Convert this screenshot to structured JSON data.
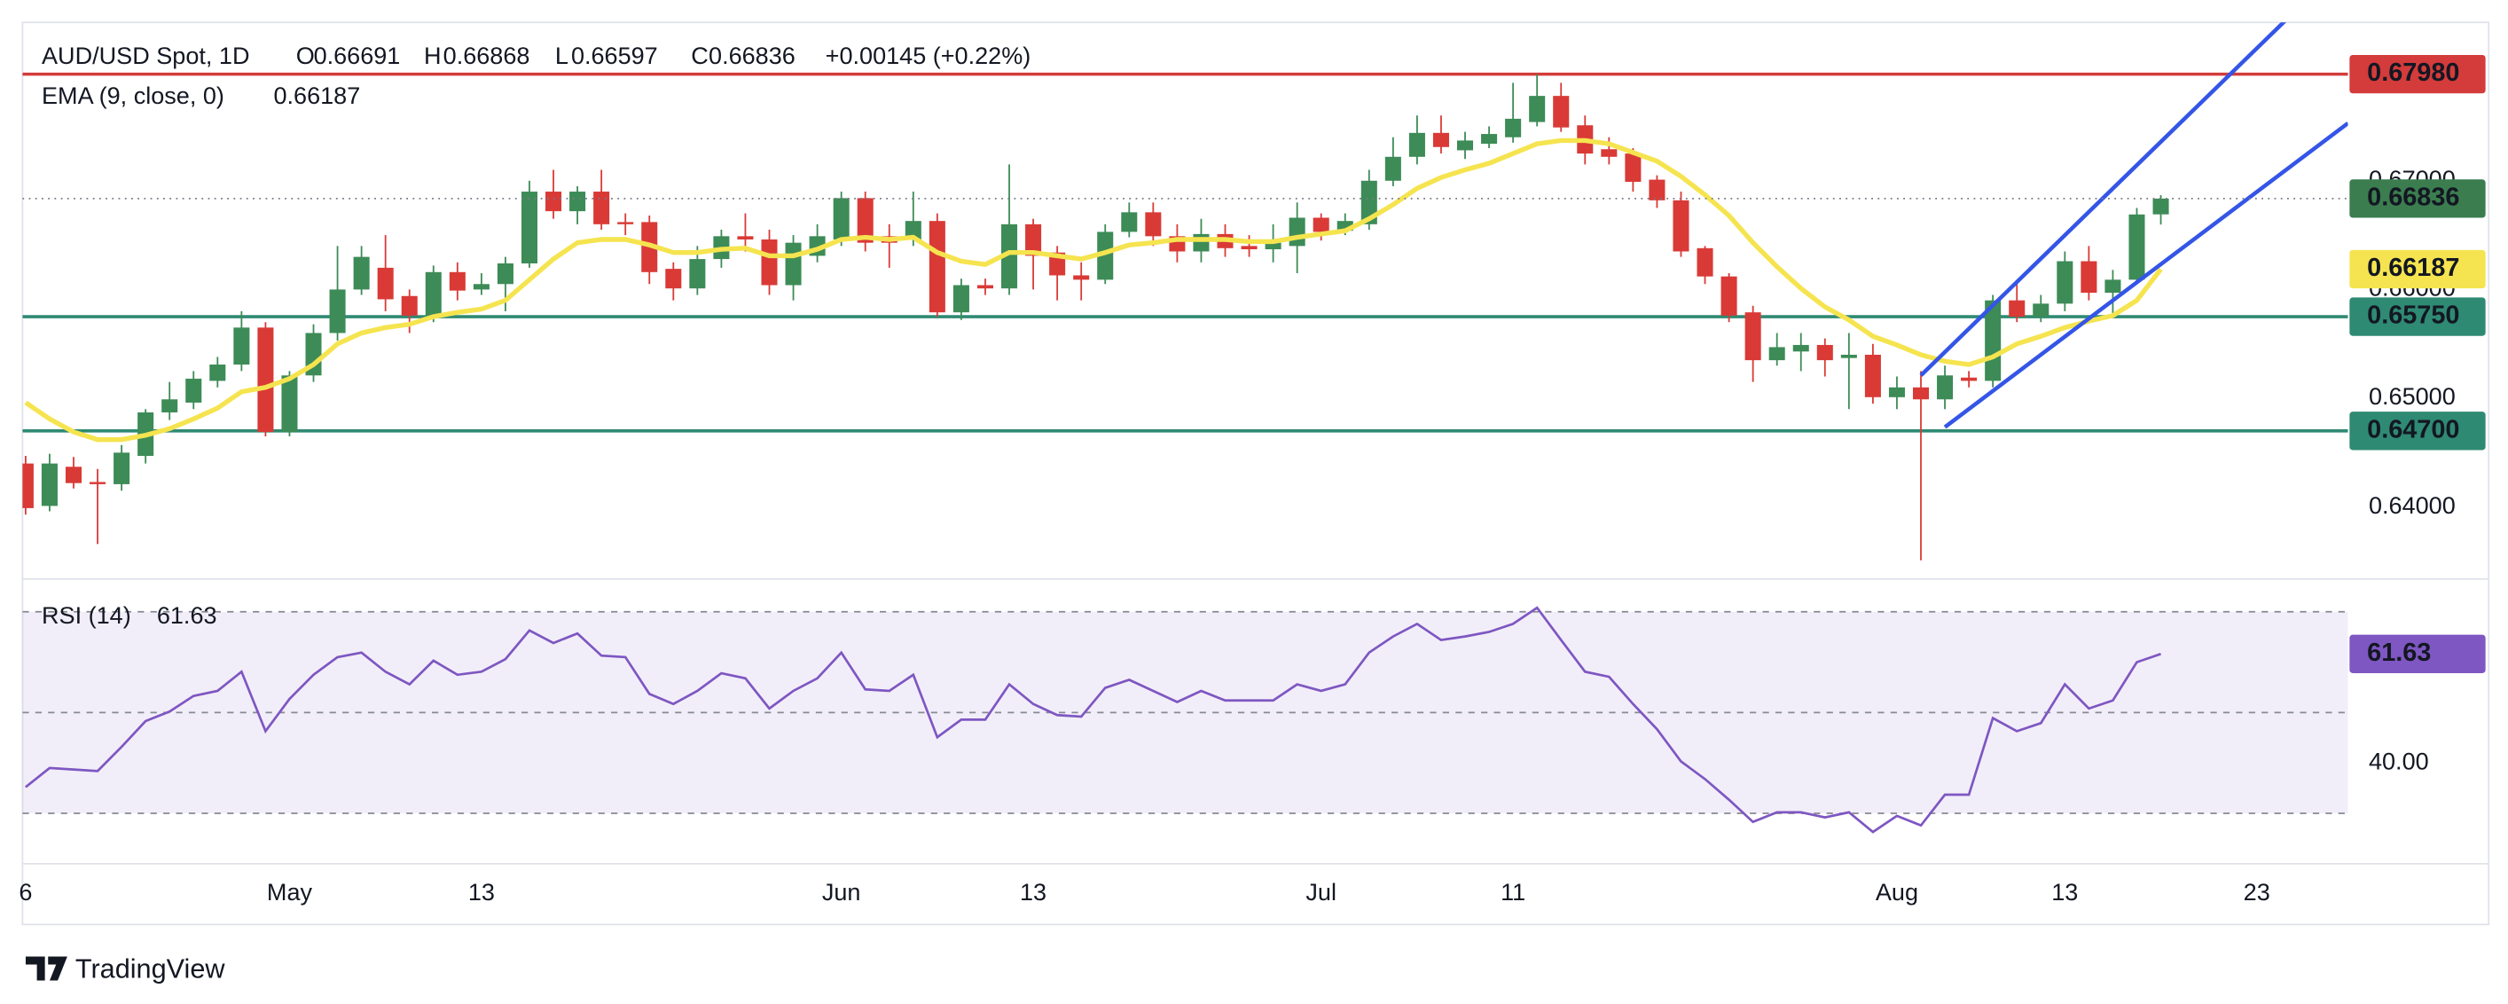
{
  "chart_data": {
    "type": "candlestick",
    "title": "AUD/USD Spot, 1D",
    "ohlc_letters": [
      "O",
      "H",
      "L",
      "C"
    ],
    "change": "+0.00145 (+0.22%)",
    "colors": {
      "up": "#3d8b57",
      "down": "#d93a36",
      "text_up": "#3d8b57",
      "last": "#3b7d4f"
    },
    "candles": [
      [
        0.644,
        0.6447,
        0.6393,
        0.6399
      ],
      [
        0.6401,
        0.6449,
        0.6396,
        0.644
      ],
      [
        0.6437,
        0.6446,
        0.6417,
        0.6422
      ],
      [
        0.6423,
        0.6435,
        0.6366,
        0.6421
      ],
      [
        0.6421,
        0.6457,
        0.6415,
        0.645
      ],
      [
        0.6447,
        0.649,
        0.644,
        0.6487
      ],
      [
        0.6487,
        0.6515,
        0.648,
        0.6499
      ],
      [
        0.6496,
        0.6525,
        0.649,
        0.6518
      ],
      [
        0.6516,
        0.6538,
        0.651,
        0.6531
      ],
      [
        0.6531,
        0.658,
        0.6525,
        0.6565
      ],
      [
        0.6565,
        0.657,
        0.6465,
        0.6469
      ],
      [
        0.6469,
        0.6525,
        0.6465,
        0.6521
      ],
      [
        0.6521,
        0.6568,
        0.6515,
        0.656
      ],
      [
        0.656,
        0.664,
        0.6553,
        0.66
      ],
      [
        0.66,
        0.664,
        0.6595,
        0.663
      ],
      [
        0.662,
        0.665,
        0.658,
        0.6591
      ],
      [
        0.6594,
        0.66,
        0.656,
        0.6576
      ],
      [
        0.6576,
        0.6622,
        0.657,
        0.6616
      ],
      [
        0.6616,
        0.6625,
        0.659,
        0.6599
      ],
      [
        0.66,
        0.6615,
        0.6595,
        0.6605
      ],
      [
        0.6605,
        0.663,
        0.658,
        0.6624
      ],
      [
        0.6624,
        0.67,
        0.662,
        0.669
      ],
      [
        0.669,
        0.671,
        0.6665,
        0.6672
      ],
      [
        0.6672,
        0.6695,
        0.666,
        0.669
      ],
      [
        0.669,
        0.671,
        0.6655,
        0.666
      ],
      [
        0.6662,
        0.667,
        0.665,
        0.666
      ],
      [
        0.6662,
        0.6668,
        0.6605,
        0.6616
      ],
      [
        0.6619,
        0.6625,
        0.659,
        0.6601
      ],
      [
        0.6601,
        0.664,
        0.6595,
        0.6628
      ],
      [
        0.6628,
        0.6655,
        0.662,
        0.6649
      ],
      [
        0.6649,
        0.667,
        0.6635,
        0.6646
      ],
      [
        0.6646,
        0.6655,
        0.6595,
        0.6604
      ],
      [
        0.6604,
        0.665,
        0.659,
        0.6643
      ],
      [
        0.6631,
        0.666,
        0.6625,
        0.6649
      ],
      [
        0.6646,
        0.669,
        0.664,
        0.6684
      ],
      [
        0.6684,
        0.669,
        0.6635,
        0.6643
      ],
      [
        0.6649,
        0.666,
        0.662,
        0.6643
      ],
      [
        0.6646,
        0.669,
        0.664,
        0.6663
      ],
      [
        0.6663,
        0.667,
        0.6575,
        0.6579
      ],
      [
        0.6579,
        0.661,
        0.6572,
        0.6604
      ],
      [
        0.6604,
        0.661,
        0.6595,
        0.6601
      ],
      [
        0.6601,
        0.6715,
        0.6595,
        0.666
      ],
      [
        0.666,
        0.6665,
        0.66,
        0.6631
      ],
      [
        0.6634,
        0.664,
        0.659,
        0.6613
      ],
      [
        0.6613,
        0.6625,
        0.659,
        0.6609
      ],
      [
        0.6609,
        0.666,
        0.6605,
        0.6653
      ],
      [
        0.6653,
        0.668,
        0.6648,
        0.6671
      ],
      [
        0.6671,
        0.668,
        0.664,
        0.6649
      ],
      [
        0.6649,
        0.666,
        0.6625,
        0.6635
      ],
      [
        0.6635,
        0.6665,
        0.6625,
        0.6651
      ],
      [
        0.6651,
        0.666,
        0.663,
        0.6638
      ],
      [
        0.664,
        0.665,
        0.663,
        0.6637
      ],
      [
        0.6637,
        0.666,
        0.6625,
        0.6643
      ],
      [
        0.664,
        0.668,
        0.6615,
        0.6666
      ],
      [
        0.6666,
        0.667,
        0.6645,
        0.6653
      ],
      [
        0.6654,
        0.667,
        0.665,
        0.6663
      ],
      [
        0.666,
        0.671,
        0.6655,
        0.67
      ],
      [
        0.67,
        0.674,
        0.6695,
        0.6722
      ],
      [
        0.6722,
        0.676,
        0.6715,
        0.6744
      ],
      [
        0.6744,
        0.676,
        0.6725,
        0.6731
      ],
      [
        0.6728,
        0.6745,
        0.672,
        0.6737
      ],
      [
        0.6734,
        0.675,
        0.673,
        0.6743
      ],
      [
        0.674,
        0.679,
        0.6735,
        0.6757
      ],
      [
        0.6754,
        0.6798,
        0.675,
        0.6778
      ],
      [
        0.6778,
        0.679,
        0.6745,
        0.6749
      ],
      [
        0.6751,
        0.676,
        0.6715,
        0.6725
      ],
      [
        0.6729,
        0.674,
        0.6715,
        0.6722
      ],
      [
        0.6725,
        0.673,
        0.669,
        0.6699
      ],
      [
        0.6701,
        0.6705,
        0.6675,
        0.6682
      ],
      [
        0.6682,
        0.669,
        0.663,
        0.6635
      ],
      [
        0.6638,
        0.664,
        0.6605,
        0.6612
      ],
      [
        0.6612,
        0.6615,
        0.657,
        0.6576
      ],
      [
        0.6579,
        0.6585,
        0.6515,
        0.6535
      ],
      [
        0.6535,
        0.656,
        0.653,
        0.6547
      ],
      [
        0.6543,
        0.656,
        0.6525,
        0.6549
      ],
      [
        0.6549,
        0.6555,
        0.652,
        0.6535
      ],
      [
        0.6537,
        0.656,
        0.649,
        0.654
      ],
      [
        0.654,
        0.655,
        0.6495,
        0.6501
      ],
      [
        0.6501,
        0.652,
        0.649,
        0.651
      ],
      [
        0.651,
        0.6525,
        0.6351,
        0.6499
      ],
      [
        0.6499,
        0.653,
        0.649,
        0.6521
      ],
      [
        0.6519,
        0.6525,
        0.651,
        0.6516
      ],
      [
        0.6516,
        0.6595,
        0.651,
        0.659
      ],
      [
        0.659,
        0.6605,
        0.657,
        0.6575
      ],
      [
        0.6575,
        0.6595,
        0.657,
        0.6587
      ],
      [
        0.6587,
        0.6635,
        0.658,
        0.6626
      ],
      [
        0.6626,
        0.664,
        0.659,
        0.6597
      ],
      [
        0.6597,
        0.6618,
        0.6575,
        0.6609
      ],
      [
        0.6609,
        0.6675,
        0.6605,
        0.6669
      ],
      [
        0.66691,
        0.66868,
        0.66597,
        0.66836
      ]
    ],
    "ylim": [
      0.63338,
      0.68456
    ],
    "yticks": [
      {
        "value": 0.64,
        "label": "0.64000"
      },
      {
        "value": 0.65,
        "label": "0.65000"
      },
      {
        "value": 0.66,
        "label": "0.66000"
      },
      {
        "value": 0.67,
        "label": "0.67000"
      }
    ],
    "xlim": [
      -0.13,
      96.8
    ],
    "xticks": [
      {
        "value": 0,
        "label": "6"
      },
      {
        "value": 11,
        "label": "May"
      },
      {
        "value": 19,
        "label": "13"
      },
      {
        "value": 34,
        "label": "Jun"
      },
      {
        "value": 42,
        "label": "13"
      },
      {
        "value": 54,
        "label": "Jul"
      },
      {
        "value": 62,
        "label": "11"
      },
      {
        "value": 78,
        "label": "Aug"
      },
      {
        "value": 85,
        "label": "13"
      },
      {
        "value": 93,
        "label": "23"
      }
    ],
    "grid": false,
    "ema": {
      "name": "EMA (9, close, 0)",
      "color": "#f5e44f",
      "values": [
        0.6496,
        0.6481,
        0.6469,
        0.6462,
        0.6462,
        0.6466,
        0.6472,
        0.6481,
        0.6491,
        0.6506,
        0.651,
        0.6518,
        0.6531,
        0.655,
        0.656,
        0.6565,
        0.6568,
        0.6575,
        0.6579,
        0.6582,
        0.659,
        0.6609,
        0.6628,
        0.6643,
        0.6646,
        0.6646,
        0.6641,
        0.6634,
        0.6634,
        0.6637,
        0.6638,
        0.6631,
        0.6631,
        0.6637,
        0.6646,
        0.6648,
        0.6646,
        0.6648,
        0.6634,
        0.6626,
        0.6623,
        0.6634,
        0.6634,
        0.6631,
        0.6628,
        0.6634,
        0.6641,
        0.6643,
        0.6646,
        0.6646,
        0.6646,
        0.6644,
        0.6644,
        0.6648,
        0.6651,
        0.6654,
        0.6665,
        0.6678,
        0.6693,
        0.6703,
        0.671,
        0.6716,
        0.6725,
        0.6734,
        0.6737,
        0.6737,
        0.6734,
        0.6726,
        0.6718,
        0.6704,
        0.6687,
        0.6668,
        0.6643,
        0.6621,
        0.6601,
        0.6584,
        0.6572,
        0.6557,
        0.6549,
        0.654,
        0.6534,
        0.6531,
        0.6538,
        0.655,
        0.6557,
        0.6565,
        0.6571,
        0.6576,
        0.659,
        0.66187
      ]
    },
    "levels": [
      {
        "value": 0.6798,
        "label": "0.67980",
        "color": "#d43b3b"
      },
      {
        "value": 0.6575,
        "label": "0.65750",
        "color": "#2f8a73"
      },
      {
        "value": 0.647,
        "label": "0.64700",
        "color": "#2f8a73"
      }
    ],
    "trendlines": [
      {
        "color": "#3455e6",
        "points": [
          [
            79,
            0.6521
          ],
          [
            94.27,
            0.6849
          ]
        ]
      },
      {
        "color": "#3455e6",
        "points": [
          [
            80,
            0.64735
          ],
          [
            96.8,
            0.67529
          ]
        ]
      }
    ],
    "rsi": {
      "name": "RSI (14)",
      "color": "#7e57c2",
      "ylim": [
        20,
        76.5
      ],
      "yticks": [
        {
          "value": 40,
          "label": "40.00"
        }
      ],
      "levels": [
        30,
        50,
        70
      ],
      "values": [
        35.2,
        39.0,
        38.7,
        38.4,
        43.2,
        48.3,
        50.2,
        53.3,
        54.3,
        58.1,
        46.3,
        52.7,
        57.5,
        61.0,
        61.9,
        58.1,
        55.6,
        60.3,
        57.5,
        58.1,
        60.6,
        66.3,
        63.8,
        65.7,
        61.3,
        61.0,
        53.7,
        51.7,
        54.3,
        57.8,
        56.8,
        50.8,
        54.3,
        56.8,
        61.9,
        54.6,
        54.3,
        57.5,
        45.1,
        48.6,
        48.6,
        55.6,
        51.7,
        49.5,
        49.2,
        54.9,
        56.5,
        54.3,
        52.1,
        54.3,
        52.4,
        52.4,
        52.4,
        55.6,
        54.3,
        55.6,
        61.9,
        65.1,
        67.6,
        64.4,
        65.1,
        66.0,
        67.6,
        70.8,
        64.4,
        58.1,
        57.1,
        51.7,
        46.7,
        40.3,
        36.8,
        32.7,
        28.3,
        30.2,
        30.2,
        29.2,
        30.2,
        26.3,
        29.5,
        27.6,
        33.7,
        33.7,
        48.9,
        46.3,
        47.9,
        55.6,
        50.8,
        52.4,
        60.0,
        61.63
      ]
    },
    "brand": "TradingView"
  }
}
